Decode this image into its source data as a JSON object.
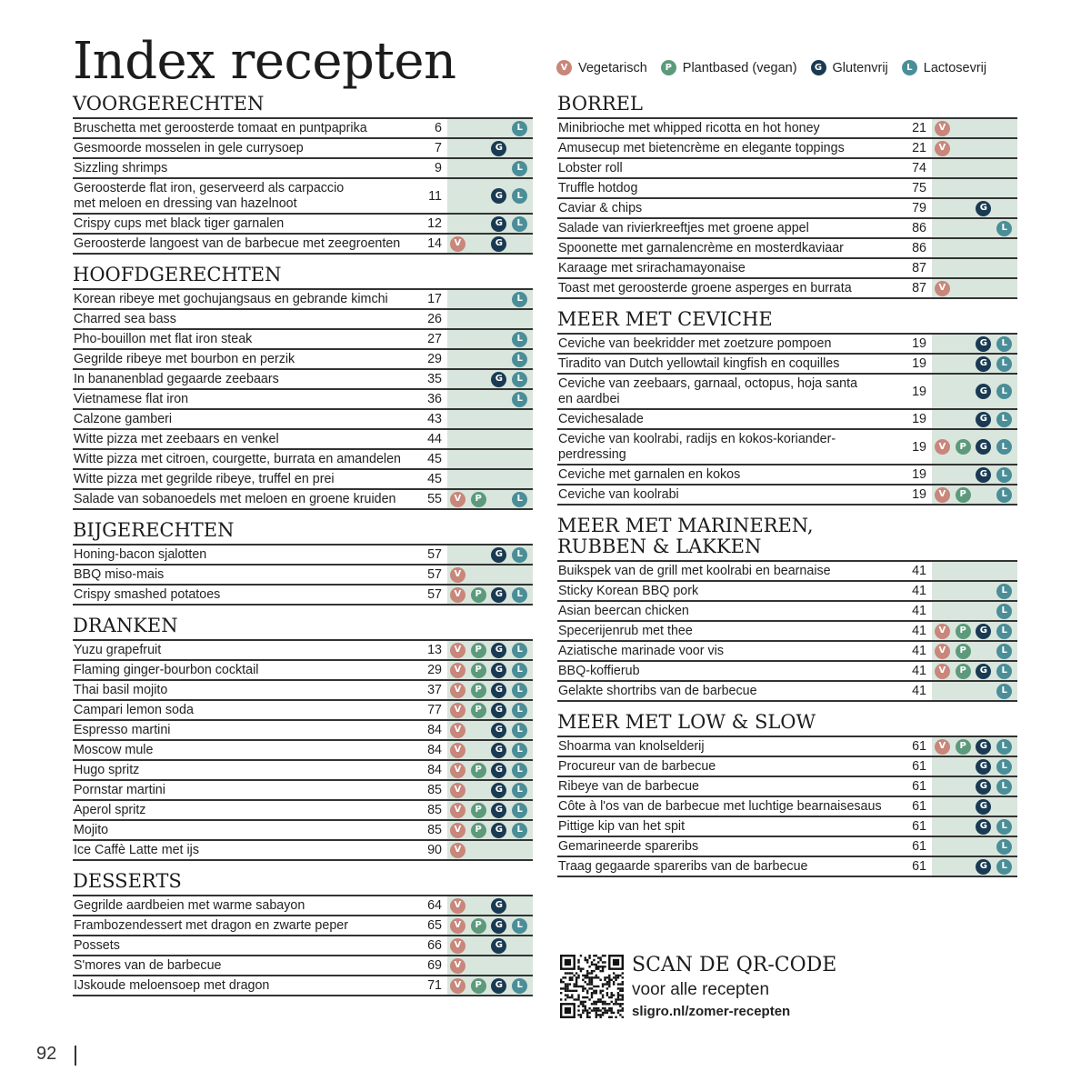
{
  "title": "Index recepten",
  "legend": [
    {
      "code": "V",
      "label": "Vegetarisch"
    },
    {
      "code": "P",
      "label": "Plantbased (vegan)"
    },
    {
      "code": "G",
      "label": "Glutenvrij"
    },
    {
      "code": "L",
      "label": "Lactosevrij"
    }
  ],
  "colors": {
    "V": "#c9867a",
    "P": "#5c9a7b",
    "G": "#193a52",
    "L": "#4a8e98",
    "badge_bg": "#d9e6dd"
  },
  "left_sections": [
    {
      "title": "VOORGERECHTEN",
      "items": [
        {
          "name": "Bruschetta met geroosterde tomaat en puntpaprika",
          "page": "6",
          "tags": [
            "L"
          ]
        },
        {
          "name": "Gesmoorde mosselen in gele currysoep",
          "page": "7",
          "tags": [
            "G"
          ]
        },
        {
          "name": "Sizzling shrimps",
          "page": "9",
          "tags": [
            "L"
          ]
        },
        {
          "name": "Geroosterde flat iron, geserveerd als carpaccio\nmet meloen en dressing van hazelnoot",
          "page": "11",
          "tags": [
            "G",
            "L"
          ]
        },
        {
          "name": "Crispy cups met black tiger garnalen",
          "page": "12",
          "tags": [
            "G",
            "L"
          ]
        },
        {
          "name": "Geroosterde langoest van de barbecue met zeegroenten",
          "page": "14",
          "tags": [
            "V",
            "G"
          ]
        }
      ]
    },
    {
      "title": "HOOFDGERECHTEN",
      "items": [
        {
          "name": "Korean ribeye met gochujangsaus en gebrande kimchi",
          "page": "17",
          "tags": [
            "L"
          ]
        },
        {
          "name": "Charred sea bass",
          "page": "26",
          "tags": []
        },
        {
          "name": "Pho-bouillon met flat iron steak",
          "page": "27",
          "tags": [
            "L"
          ]
        },
        {
          "name": "Gegrilde ribeye met bourbon en perzik",
          "page": "29",
          "tags": [
            "L"
          ]
        },
        {
          "name": "In bananenblad gegaarde zeebaars",
          "page": "35",
          "tags": [
            "G",
            "L"
          ]
        },
        {
          "name": "Vietnamese flat iron",
          "page": "36",
          "tags": [
            "L"
          ]
        },
        {
          "name": "Calzone gamberi",
          "page": "43",
          "tags": []
        },
        {
          "name": "Witte pizza met zeebaars en venkel",
          "page": "44",
          "tags": []
        },
        {
          "name": "Witte pizza met citroen, courgette, burrata en amandelen",
          "page": "45",
          "tags": []
        },
        {
          "name": "Witte pizza met gegrilde ribeye, truffel en prei",
          "page": "45",
          "tags": []
        },
        {
          "name": "Salade van sobanoedels met meloen en groene kruiden",
          "page": "55",
          "tags": [
            "V",
            "P",
            "L"
          ]
        }
      ]
    },
    {
      "title": "BIJGERECHTEN",
      "items": [
        {
          "name": "Honing-bacon sjalotten",
          "page": "57",
          "tags": [
            "G",
            "L"
          ]
        },
        {
          "name": "BBQ miso-mais",
          "page": "57",
          "tags": [
            "V"
          ]
        },
        {
          "name": "Crispy smashed potatoes",
          "page": "57",
          "tags": [
            "V",
            "P",
            "G",
            "L"
          ]
        }
      ]
    },
    {
      "title": "DRANKEN",
      "items": [
        {
          "name": "Yuzu grapefruit",
          "page": "13",
          "tags": [
            "V",
            "P",
            "G",
            "L"
          ]
        },
        {
          "name": "Flaming ginger-bourbon cocktail",
          "page": "29",
          "tags": [
            "V",
            "P",
            "G",
            "L"
          ]
        },
        {
          "name": "Thai basil mojito",
          "page": "37",
          "tags": [
            "V",
            "P",
            "G",
            "L"
          ]
        },
        {
          "name": "Campari lemon soda",
          "page": "77",
          "tags": [
            "V",
            "P",
            "G",
            "L"
          ]
        },
        {
          "name": "Espresso martini",
          "page": "84",
          "tags": [
            "V",
            "G",
            "L"
          ]
        },
        {
          "name": "Moscow mule",
          "page": "84",
          "tags": [
            "V",
            "G",
            "L"
          ]
        },
        {
          "name": "Hugo spritz",
          "page": "84",
          "tags": [
            "V",
            "P",
            "G",
            "L"
          ]
        },
        {
          "name": "Pornstar martini",
          "page": "85",
          "tags": [
            "V",
            "G",
            "L"
          ]
        },
        {
          "name": "Aperol spritz",
          "page": "85",
          "tags": [
            "V",
            "P",
            "G",
            "L"
          ]
        },
        {
          "name": "Mojito",
          "page": "85",
          "tags": [
            "V",
            "P",
            "G",
            "L"
          ]
        },
        {
          "name": "Ice Caffè Latte met ijs",
          "page": "90",
          "tags": [
            "V"
          ]
        }
      ]
    },
    {
      "title": "DESSERTS",
      "items": [
        {
          "name": "Gegrilde aardbeien met warme sabayon",
          "page": "64",
          "tags": [
            "V",
            "G"
          ]
        },
        {
          "name": "Frambozendessert met dragon en zwarte peper",
          "page": "65",
          "tags": [
            "V",
            "P",
            "G",
            "L"
          ]
        },
        {
          "name": "Possets",
          "page": "66",
          "tags": [
            "V",
            "G"
          ]
        },
        {
          "name": "S'mores van de barbecue",
          "page": "69",
          "tags": [
            "V"
          ]
        },
        {
          "name": "IJskoude meloensoep met dragon",
          "page": "71",
          "tags": [
            "V",
            "P",
            "G",
            "L"
          ]
        }
      ]
    }
  ],
  "right_sections": [
    {
      "title": "BORREL",
      "items": [
        {
          "name": "Minibrioche met whipped ricotta en hot honey",
          "page": "21",
          "tags": [
            "V"
          ]
        },
        {
          "name": "Amusecup met bietencrème en elegante toppings",
          "page": "21",
          "tags": [
            "V"
          ]
        },
        {
          "name": "Lobster roll",
          "page": "74",
          "tags": []
        },
        {
          "name": "Truffle hotdog",
          "page": "75",
          "tags": []
        },
        {
          "name": "Caviar & chips",
          "page": "79",
          "tags": [
            "G"
          ]
        },
        {
          "name": "Salade van rivierkreeftjes met groene appel",
          "page": "86",
          "tags": [
            "L"
          ]
        },
        {
          "name": "Spoonette met garnalencrème en mosterdkaviaar",
          "page": "86",
          "tags": []
        },
        {
          "name": "Karaage met srirachamayonaise",
          "page": "87",
          "tags": []
        },
        {
          "name": "Toast met geroosterde groene asperges en burrata",
          "page": "87",
          "tags": [
            "V"
          ]
        }
      ]
    },
    {
      "title": "MEER MET CEVICHE",
      "items": [
        {
          "name": "Ceviche van beekridder met zoetzure pompoen",
          "page": "19",
          "tags": [
            "G",
            "L"
          ]
        },
        {
          "name": "Tiradito van Dutch yellowtail kingfish en coquilles",
          "page": "19",
          "tags": [
            "G",
            "L"
          ]
        },
        {
          "name": "Ceviche van zeebaars, garnaal, octopus, hoja santa\nen aardbei",
          "page": "19",
          "tags": [
            "G",
            "L"
          ]
        },
        {
          "name": "Cevichesalade",
          "page": "19",
          "tags": [
            "G",
            "L"
          ]
        },
        {
          "name": "Ceviche van koolrabi, radijs en kokos-koriander-\nperdressing",
          "page": "19",
          "tags": [
            "V",
            "P",
            "G",
            "L"
          ]
        },
        {
          "name": "Ceviche met garnalen en kokos",
          "page": "19",
          "tags": [
            "G",
            "L"
          ]
        },
        {
          "name": "Ceviche van koolrabi",
          "page": "19",
          "tags": [
            "V",
            "P",
            "L"
          ]
        }
      ]
    },
    {
      "title": "MEER MET MARINEREN,\nRUBBEN & LAKKEN",
      "items": [
        {
          "name": "Buikspek van de grill met koolrabi en bearnaise",
          "page": "41",
          "tags": []
        },
        {
          "name": "Sticky Korean BBQ pork",
          "page": "41",
          "tags": [
            "L"
          ]
        },
        {
          "name": "Asian beercan chicken",
          "page": "41",
          "tags": [
            "L"
          ]
        },
        {
          "name": "Specerijenrub met thee",
          "page": "41",
          "tags": [
            "V",
            "P",
            "G",
            "L"
          ]
        },
        {
          "name": "Aziatische marinade voor vis",
          "page": "41",
          "tags": [
            "V",
            "P",
            "L"
          ]
        },
        {
          "name": "BBQ-koffierub",
          "page": "41",
          "tags": [
            "V",
            "P",
            "G",
            "L"
          ]
        },
        {
          "name": "Gelakte shortribs van de barbecue",
          "page": "41",
          "tags": [
            "L"
          ]
        }
      ]
    },
    {
      "title": "MEER MET LOW & SLOW",
      "items": [
        {
          "name": "Shoarma van knolselderij",
          "page": "61",
          "tags": [
            "V",
            "P",
            "G",
            "L"
          ]
        },
        {
          "name": "Procureur van de barbecue",
          "page": "61",
          "tags": [
            "G",
            "L"
          ]
        },
        {
          "name": "Ribeye van de barbecue",
          "page": "61",
          "tags": [
            "G",
            "L"
          ]
        },
        {
          "name": "Côte à l'os van de barbecue met luchtige bearnaisesaus",
          "page": "61",
          "tags": [
            "G"
          ]
        },
        {
          "name": "Pittige kip van het spit",
          "page": "61",
          "tags": [
            "G",
            "L"
          ]
        },
        {
          "name": "Gemarineerde spareribs",
          "page": "61",
          "tags": [
            "L"
          ]
        },
        {
          "name": "Traag gegaarde spareribs van de barbecue",
          "page": "61",
          "tags": [
            "G",
            "L"
          ]
        }
      ]
    }
  ],
  "scan": {
    "title": "SCAN DE QR-CODE",
    "subtitle": "voor alle recepten",
    "url": "sligro.nl/zomer-recepten"
  },
  "page_number": "92"
}
